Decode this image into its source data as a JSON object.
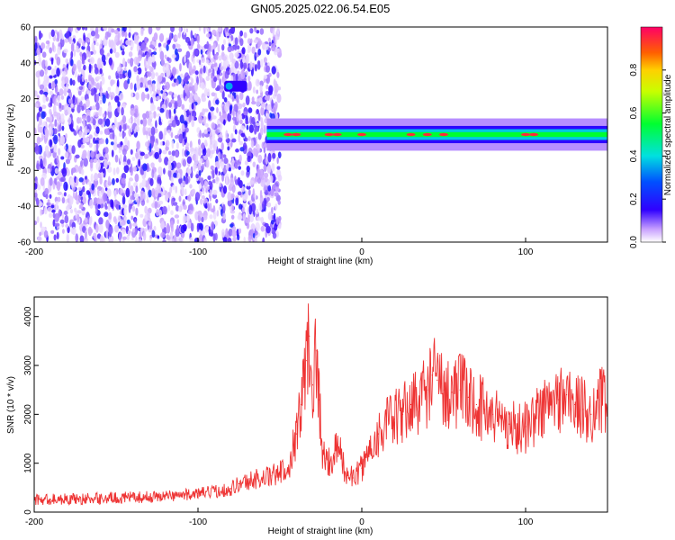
{
  "title": "GN05.2025.022.06.54.E05",
  "chart_data": [
    {
      "type": "heatmap",
      "xlabel": "Height of straight line (km)",
      "ylabel": "Frequency (Hz)",
      "xlim": [
        -200,
        150
      ],
      "ylim": [
        -60,
        60
      ],
      "xticks": [
        "-200",
        "-100",
        "0",
        "100"
      ],
      "yticks": [
        "60",
        "40",
        "20",
        "0",
        "-20",
        "-40",
        "-60"
      ],
      "colorbar": {
        "label": "Normalized spectral amplitude",
        "range": [
          0,
          1
        ],
        "ticks": [
          "0.0",
          "0.2",
          "0.4",
          "0.6",
          "0.8"
        ]
      },
      "regions": [
        {
          "kind": "noise",
          "x_range": [
            -200,
            -50
          ],
          "y_range": [
            -60,
            60
          ],
          "amplitude": 0.1
        },
        {
          "kind": "blob",
          "x_range": [
            -84,
            -70
          ],
          "y_range": [
            24,
            30
          ],
          "amplitude": 0.35
        },
        {
          "kind": "band",
          "x_range": [
            -58,
            150
          ],
          "center_hz": 0,
          "half_width_hz": 3,
          "amplitude": 0.55
        },
        {
          "kind": "peaks",
          "x": [
            -45,
            -40,
            -20,
            -15,
            0,
            30,
            40,
            50,
            100,
            105
          ],
          "center_hz": 0,
          "amplitude": 0.95
        }
      ]
    },
    {
      "type": "line",
      "xlabel": "Height of straight line (km)",
      "ylabel": "SNR (10 * v/v)",
      "xlim": [
        -200,
        150
      ],
      "ylim": [
        0,
        4400
      ],
      "xticks": [
        "-200",
        "-100",
        "0",
        "100"
      ],
      "yticks": [
        "0",
        "1000",
        "2000",
        "3000",
        "4000"
      ],
      "series": [
        {
          "color": "#ee3333",
          "x": [
            -200,
            -190,
            -180,
            -170,
            -160,
            -150,
            -140,
            -130,
            -120,
            -110,
            -100,
            -90,
            -80,
            -75,
            -70,
            -65,
            -60,
            -55,
            -50,
            -45,
            -40,
            -37,
            -34,
            -32,
            -30,
            -28,
            -26,
            -24,
            -22,
            -20,
            -17,
            -14,
            -10,
            -5,
            0,
            5,
            10,
            15,
            20,
            25,
            30,
            35,
            40,
            43,
            46,
            50,
            55,
            60,
            65,
            70,
            75,
            80,
            85,
            90,
            95,
            100,
            105,
            110,
            115,
            120,
            125,
            130,
            135,
            140,
            145,
            150
          ],
          "y": [
            250,
            260,
            270,
            270,
            280,
            290,
            300,
            310,
            330,
            350,
            380,
            420,
            480,
            580,
            620,
            680,
            700,
            740,
            800,
            900,
            1600,
            2200,
            3100,
            3600,
            2600,
            3300,
            2300,
            1200,
            1100,
            1000,
            1200,
            1300,
            800,
            700,
            900,
            1300,
            1600,
            1800,
            1900,
            2000,
            2200,
            2300,
            2500,
            2800,
            2700,
            2500,
            2450,
            2500,
            2350,
            2200,
            2100,
            2000,
            1900,
            1800,
            1700,
            1750,
            1900,
            2100,
            2200,
            2300,
            2400,
            2200,
            2100,
            2000,
            2300,
            2200
          ]
        }
      ]
    }
  ]
}
